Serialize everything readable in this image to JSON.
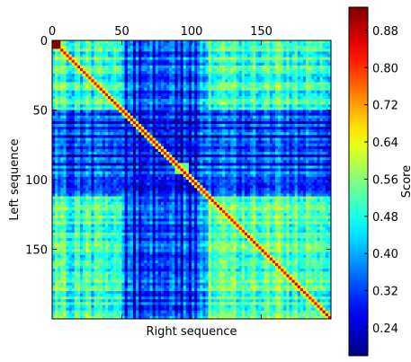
{
  "chart_data": {
    "type": "heatmap",
    "xlabel": "Right sequence",
    "ylabel": "Left sequence",
    "x_axis_position": "top",
    "xlim": [
      0,
      200
    ],
    "ylim": [
      200,
      0
    ],
    "x_ticks": [
      0,
      50,
      100,
      150
    ],
    "y_ticks": [
      0,
      50,
      100,
      150
    ],
    "colorbar": {
      "label": "Score",
      "colormap": "jet",
      "range": [
        0.18,
        0.93
      ],
      "ticks": [
        "0.24",
        "0.32",
        "0.40",
        "0.48",
        "0.56",
        "0.64",
        "0.72",
        "0.80",
        "0.88"
      ]
    },
    "matrix_size": [
      200,
      200
    ],
    "diagonal_score": 0.85,
    "corner_peak_score": 0.92,
    "block_scores": {
      "rows": [
        [
          0,
          50
        ],
        [
          50,
          112
        ],
        [
          112,
          200
        ]
      ],
      "cols": [
        [
          0,
          50
        ],
        [
          50,
          112
        ],
        [
          112,
          200
        ]
      ],
      "means": [
        [
          0.5,
          0.38,
          0.5
        ],
        [
          0.36,
          0.34,
          0.36
        ],
        [
          0.5,
          0.37,
          0.52
        ]
      ]
    },
    "low_score_rows": [
      52,
      58,
      63,
      68,
      72,
      77,
      82,
      88,
      93,
      98,
      103
    ],
    "high_score_band": {
      "rows": [
        88,
        95
      ],
      "cols": [
        88,
        96
      ],
      "score": 0.55
    },
    "grid": false
  }
}
